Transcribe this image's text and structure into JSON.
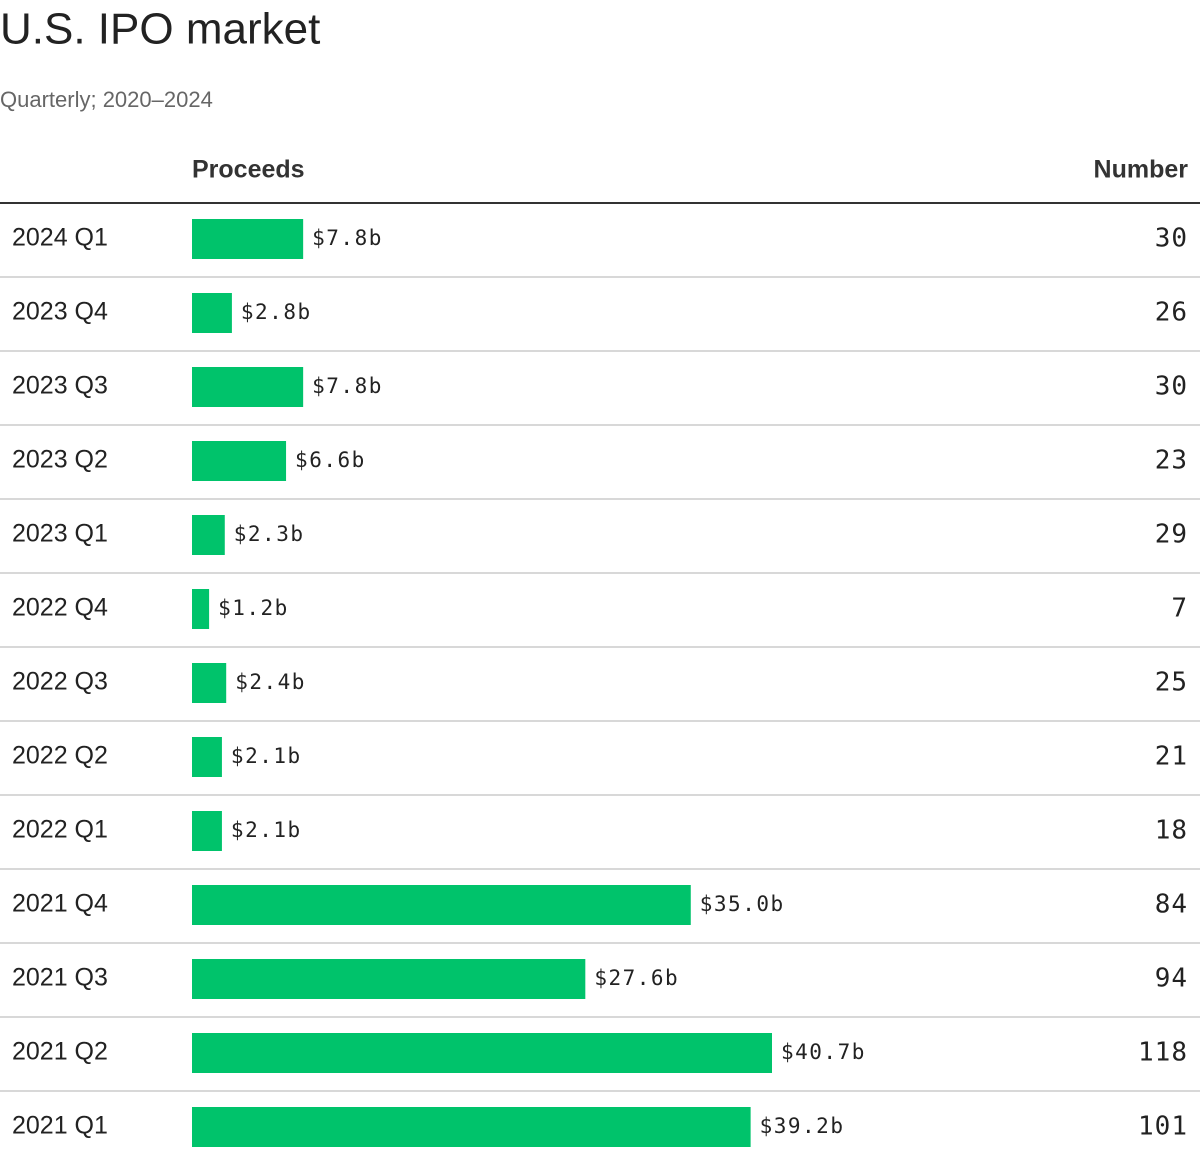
{
  "chart_data": {
    "type": "bar",
    "orientation": "horizontal",
    "title": "U.S. IPO market",
    "subtitle": "Quarterly; 2020–2024",
    "columns": [
      "Proceeds",
      "Number"
    ],
    "categories": [
      "2024 Q1",
      "2023 Q4",
      "2023 Q3",
      "2023 Q2",
      "2023 Q1",
      "2022 Q4",
      "2022 Q3",
      "2022 Q2",
      "2022 Q1",
      "2021 Q4",
      "2021 Q3",
      "2021 Q2",
      "2021 Q1"
    ],
    "values": [
      7.8,
      2.8,
      7.8,
      6.6,
      2.3,
      1.2,
      2.4,
      2.1,
      2.1,
      35.0,
      27.6,
      40.7,
      39.2
    ],
    "value_labels": [
      "$7.8b",
      "$2.8b",
      "$7.8b",
      "$6.6b",
      "$2.3b",
      "$1.2b",
      "$2.4b",
      "$2.1b",
      "$2.1b",
      "$35.0b",
      "$27.6b",
      "$40.7b",
      "$39.2b"
    ],
    "number": [
      30,
      26,
      30,
      23,
      29,
      7,
      25,
      21,
      18,
      84,
      94,
      118,
      101
    ],
    "color": "#00c36b"
  }
}
